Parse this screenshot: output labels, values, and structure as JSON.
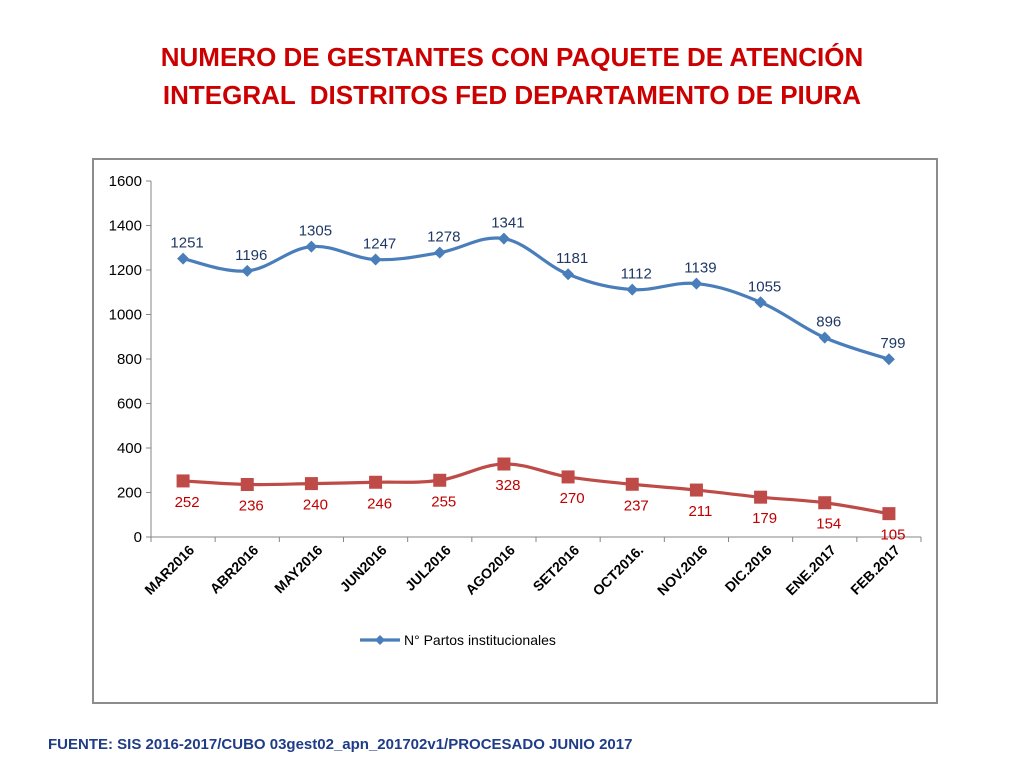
{
  "title": {
    "line1": "NUMERO DE GESTANTES CON PAQUETE DE ATENCIÓN",
    "line2": "INTEGRAL  DISTRITOS FED DEPARTAMENTO DE PIURA"
  },
  "source": "FUENTE: SIS 2016-2017/CUBO 03gest02_apn_201702v1/PROCESADO JUNIO 2017",
  "colors": {
    "title": "#cc0000",
    "series1": "#4a7ebb",
    "series2": "#be4b48",
    "source": "#1f3c88"
  },
  "chart_data": {
    "type": "line",
    "title": "NUMERO DE GESTANTES CON PAQUETE DE ATENCIÓN INTEGRAL  DISTRITOS FED DEPARTAMENTO DE PIURA",
    "categories": [
      "MAR2016",
      "ABR2016",
      "MAY2016",
      "JUN2016",
      "JUL2016",
      "AGO2016",
      "SET2016",
      "OCT2016.",
      "NOV.2016",
      "DIC.2016",
      "ENE.2017",
      "FEB.2017"
    ],
    "series": [
      {
        "name": "N° Partos institucionales",
        "marker": "diamond",
        "color": "#4a7ebb",
        "values": [
          1251,
          1196,
          1305,
          1247,
          1278,
          1341,
          1181,
          1112,
          1139,
          1055,
          896,
          799
        ]
      },
      {
        "name": "",
        "marker": "square",
        "color": "#be4b48",
        "values": [
          252,
          236,
          240,
          246,
          255,
          328,
          270,
          237,
          211,
          179,
          154,
          105
        ]
      }
    ],
    "ylim": [
      0,
      1600
    ],
    "yticks": [
      0,
      200,
      400,
      600,
      800,
      1000,
      1200,
      1400,
      1600
    ],
    "xlabel": "",
    "ylabel": "",
    "legend": {
      "entries": [
        "N° Partos institucionales"
      ],
      "position": "bottom"
    },
    "grid": false
  }
}
